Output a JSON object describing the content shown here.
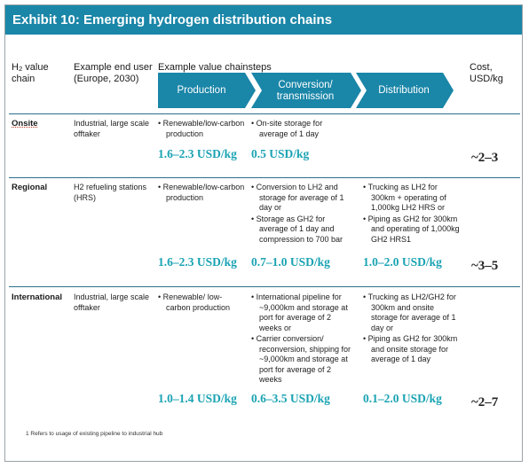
{
  "title": "Exhibit 10: Emerging hydrogen distribution chains",
  "headers": {
    "chain": "value chain",
    "chain_prefix": "H",
    "chain_sub": "2",
    "end_user": "Example end user (Europe, 2030)",
    "value_chain_steps": "Example value chainsteps",
    "cost": "Cost, USD/kg"
  },
  "steps": [
    "Production",
    "Conversion/ transmission",
    "Distribution"
  ],
  "colors": {
    "title_bar": "#1a86a8",
    "chevron": "#1a86a8",
    "value_text": "#1aa3b3",
    "divider": "#2a6f8a"
  },
  "rows": [
    {
      "chain": "Onsite",
      "end_user": "Industrial, large scale offtaker",
      "production": [
        "Renewable/low-carbon production"
      ],
      "conversion": [
        "On-site storage for average of 1 day"
      ],
      "distribution": [],
      "production_value": "1.6–2.3 USD/kg",
      "conversion_value": "0.5 USD/kg",
      "distribution_value": "",
      "cost": "~2–3"
    },
    {
      "chain": "Regional",
      "end_user": "H2 refueling stations (HRS)",
      "production": [
        "Renewable/low-carbon production"
      ],
      "conversion": [
        "Conversion to LH2 and storage for average of 1 day or",
        "Storage as GH2 for average of 1 day and compression to 700 bar"
      ],
      "distribution": [
        "Trucking as LH2 for 300km + operating of 1,000kg LH2 HRS or",
        "Piping as GH2 for 300km and operating of 1,000kg GH2 HRS1"
      ],
      "production_value": "1.6–2.3 USD/kg",
      "conversion_value": "0.7–1.0 USD/kg",
      "distribution_value": "1.0–2.0 USD/kg",
      "cost": "~3–5"
    },
    {
      "chain": "International",
      "end_user": "Industrial, large scale offtaker",
      "production": [
        "Renewable/ low-carbon production"
      ],
      "conversion": [
        "International pipeline for ~9,000km and storage at port for average of 2 weeks or",
        "Carrier conversion/ reconversion, shipping for ~9,000km and storage at port for average of 2 weeks"
      ],
      "distribution": [
        "Trucking as LH2/GH2 for 300km and onsite storage for average of 1 day or",
        "Piping as GH2 for 300km and onsite storage for average of 1 day"
      ],
      "production_value": "1.0–1.4 USD/kg",
      "conversion_value": "0.6–3.5 USD/kg",
      "distribution_value": "0.1–2.0 USD/kg",
      "cost": "~2–7"
    }
  ],
  "footnote": "1 Refers to usage of existing pipeline to industrial hub"
}
